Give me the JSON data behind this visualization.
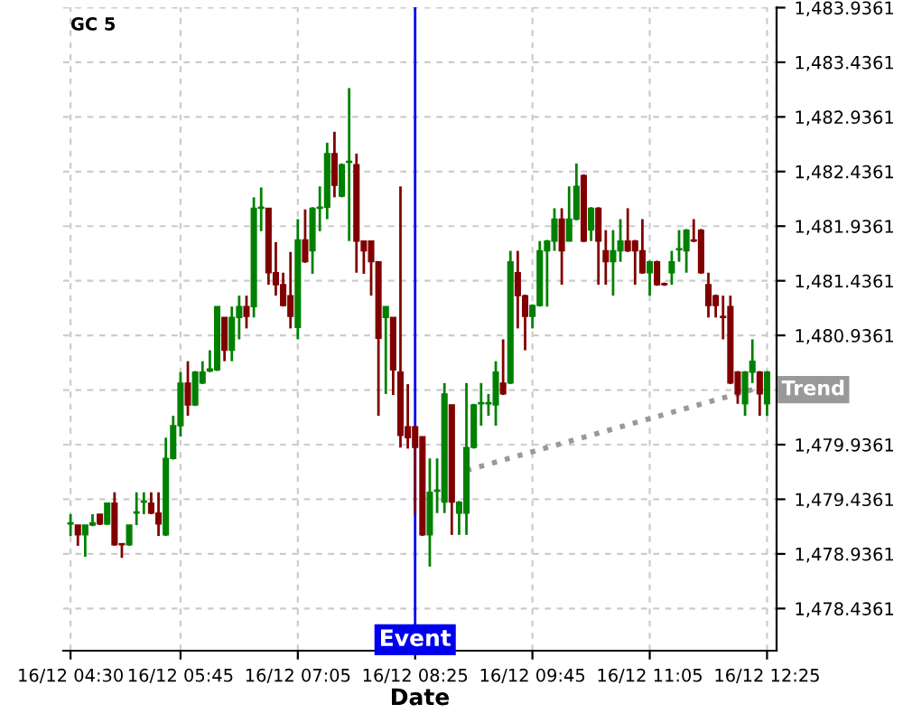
{
  "chart_data": {
    "type": "candlestick",
    "title": "GC 5",
    "xlabel": "Date",
    "categories": [
      "16/12 04:30",
      null,
      null,
      null,
      null,
      null,
      null,
      null,
      null,
      null,
      null,
      null,
      null,
      null,
      null,
      "16/12 05:45",
      null,
      null,
      null,
      null,
      null,
      null,
      null,
      null,
      null,
      null,
      null,
      null,
      null,
      null,
      null,
      "16/12 07:05",
      null,
      null,
      null,
      null,
      null,
      null,
      null,
      null,
      null,
      null,
      null,
      null,
      null,
      null,
      null,
      "16/12 08:25",
      null,
      null,
      null,
      null,
      null,
      null,
      null,
      null,
      null,
      null,
      null,
      null,
      null,
      null,
      null,
      "16/12 09:45",
      null,
      null,
      null,
      null,
      null,
      null,
      null,
      null,
      null,
      null,
      null,
      null,
      null,
      null,
      null,
      "16/12 11:05",
      null,
      null,
      null,
      null,
      null,
      null,
      null,
      null,
      null,
      null,
      null,
      null,
      null,
      null,
      null,
      "16/12 12:25"
    ],
    "ylim": [
      1478.05,
      1483.94
    ],
    "yticks": [
      {
        "value": 1478.4361,
        "label": "1,478.4361"
      },
      {
        "value": 1478.9361,
        "label": "1,478.9361"
      },
      {
        "value": 1479.4361,
        "label": "1,479.4361"
      },
      {
        "value": 1479.9361,
        "label": "1,479.9361"
      },
      {
        "value": 1480.4361,
        "label": null
      },
      {
        "value": 1480.9361,
        "label": "1,480.9361"
      },
      {
        "value": 1481.4361,
        "label": "1,481.4361"
      },
      {
        "value": 1481.9361,
        "label": "1,481.9361"
      },
      {
        "value": 1482.4361,
        "label": "1,482.4361"
      },
      {
        "value": 1482.9361,
        "label": "1,482.9361"
      },
      {
        "value": 1483.4361,
        "label": "1,483.4361"
      },
      {
        "value": 1483.9361,
        "label": "1,483.9361"
      }
    ],
    "grid": true,
    "legend": false,
    "ref_lines": [
      {
        "axis": "x",
        "value": "16/12 08:25",
        "label": "Event",
        "color": "#0000ee"
      }
    ],
    "colors": [
      "#008000",
      "#800000",
      "#008000",
      "#008000",
      "#800000",
      "#008000",
      "#800000",
      "#800000",
      "#008000",
      "#008000",
      "#008000",
      "#800000",
      "#800000",
      "#008000",
      "#008000",
      "#008000",
      "#800000",
      "#008000",
      "#008000",
      "#008000",
      "#008000",
      "#800000",
      "#008000",
      "#008000",
      "#800000",
      "#008000",
      "#008000",
      "#800000",
      "#800000",
      "#800000",
      "#800000",
      "#008000",
      "#800000",
      "#008000",
      "#008000",
      "#008000",
      "#800000",
      "#008000",
      "#008000",
      "#800000",
      "#800000",
      "#800000",
      "#800000",
      "#008000",
      "#800000",
      "#800000",
      "#800000",
      "#800000",
      "#800000",
      "#008000",
      "#008000",
      "#008000",
      "#800000",
      "#008000",
      "#008000",
      "#008000",
      "#008000",
      "#008000",
      "#008000",
      "#800000",
      "#008000",
      "#800000",
      "#800000",
      "#008000",
      "#008000",
      "#008000",
      "#008000",
      "#800000",
      "#008000",
      "#008000",
      "#800000",
      "#008000",
      "#800000",
      "#800000",
      "#008000",
      "#008000",
      "#800000",
      "#800000",
      "#800000",
      "#008000",
      "#800000",
      "#800000",
      "#008000",
      "#008000",
      "#008000",
      "#800000",
      "#800000",
      "#800000",
      "#800000",
      "#800000",
      "#800000",
      "#800000",
      "#008000",
      "#008000",
      "#800000",
      "#008000"
    ],
    "ohlc": [
      [
        1479.21,
        1479.3,
        1479.1,
        1479.22
      ],
      [
        1479.2,
        1479.2,
        1479.01,
        1479.11
      ],
      [
        1479.11,
        1479.2,
        1478.91,
        1479.2
      ],
      [
        1479.2,
        1479.3,
        1479.19,
        1479.22
      ],
      [
        1479.3,
        1479.3,
        1479.2,
        1479.21
      ],
      [
        1479.21,
        1479.4,
        1479.2,
        1479.4
      ],
      [
        1479.4,
        1479.5,
        1479.01,
        1479.02
      ],
      [
        1479.03,
        1479.03,
        1478.9,
        1479.02
      ],
      [
        1479.02,
        1479.2,
        1479.01,
        1479.2
      ],
      [
        1479.31,
        1479.5,
        1479.2,
        1479.32
      ],
      [
        1479.41,
        1479.5,
        1479.3,
        1479.42
      ],
      [
        1479.4,
        1479.5,
        1479.3,
        1479.31
      ],
      [
        1479.31,
        1479.5,
        1479.1,
        1479.21
      ],
      [
        1479.11,
        1480.0,
        1479.1,
        1479.81
      ],
      [
        1479.81,
        1480.2,
        1479.8,
        1480.11
      ],
      [
        1480.11,
        1480.6,
        1480.01,
        1480.5
      ],
      [
        1480.5,
        1480.7,
        1480.2,
        1480.3
      ],
      [
        1480.3,
        1480.61,
        1480.29,
        1480.6
      ],
      [
        1480.5,
        1480.7,
        1480.49,
        1480.6
      ],
      [
        1480.61,
        1480.8,
        1480.6,
        1480.63
      ],
      [
        1480.62,
        1481.2,
        1480.61,
        1481.2
      ],
      [
        1481.1,
        1481.1,
        1480.7,
        1480.8
      ],
      [
        1480.8,
        1481.2,
        1480.7,
        1481.1
      ],
      [
        1481.1,
        1481.3,
        1480.9,
        1481.2
      ],
      [
        1481.2,
        1481.3,
        1481.0,
        1481.11
      ],
      [
        1481.2,
        1482.2,
        1481.1,
        1482.1
      ],
      [
        1482.1,
        1482.29,
        1481.89,
        1482.11
      ],
      [
        1482.1,
        1482.1,
        1481.4,
        1481.51
      ],
      [
        1481.51,
        1481.79,
        1481.3,
        1481.4
      ],
      [
        1481.4,
        1481.51,
        1481.2,
        1481.21
      ],
      [
        1481.3,
        1481.7,
        1481.0,
        1481.11
      ],
      [
        1481.01,
        1482.0,
        1480.9,
        1481.81
      ],
      [
        1481.81,
        1482.09,
        1481.6,
        1481.61
      ],
      [
        1481.71,
        1482.11,
        1481.5,
        1482.1
      ],
      [
        1482.1,
        1482.3,
        1481.89,
        1482.11
      ],
      [
        1482.11,
        1482.7,
        1482.0,
        1482.6
      ],
      [
        1482.6,
        1482.8,
        1482.2,
        1482.31
      ],
      [
        1482.21,
        1482.51,
        1482.2,
        1482.5
      ],
      [
        1482.52,
        1483.2,
        1481.8,
        1482.53
      ],
      [
        1482.5,
        1482.6,
        1481.51,
        1481.8
      ],
      [
        1481.8,
        1481.8,
        1481.5,
        1481.71
      ],
      [
        1481.8,
        1481.8,
        1481.3,
        1481.61
      ],
      [
        1481.61,
        1481.61,
        1480.2,
        1480.91
      ],
      [
        1481.1,
        1481.2,
        1480.4,
        1481.2
      ],
      [
        1481.1,
        1481.1,
        1480.39,
        1480.62
      ],
      [
        1480.6,
        1482.3,
        1479.91,
        1480.02
      ],
      [
        1480.1,
        1480.49,
        1479.9,
        1480.0
      ],
      [
        1480.1,
        1480.11,
        1479.3,
        1479.91
      ],
      [
        1480.01,
        1480.01,
        1479.1,
        1479.11
      ],
      [
        1479.11,
        1479.81,
        1478.82,
        1479.5
      ],
      [
        1479.51,
        1479.81,
        1479.31,
        1479.52
      ],
      [
        1479.41,
        1480.5,
        1479.31,
        1480.4
      ],
      [
        1480.3,
        1480.3,
        1479.11,
        1479.41
      ],
      [
        1479.31,
        1479.42,
        1479.11,
        1479.41
      ],
      [
        1479.31,
        1480.5,
        1479.11,
        1479.91
      ],
      [
        1479.91,
        1480.31,
        1479.9,
        1480.3
      ],
      [
        1480.31,
        1480.5,
        1480.11,
        1480.32
      ],
      [
        1480.31,
        1480.4,
        1480.2,
        1480.32
      ],
      [
        1480.3,
        1480.7,
        1480.11,
        1480.6
      ],
      [
        1480.5,
        1480.9,
        1480.39,
        1480.4
      ],
      [
        1480.5,
        1481.71,
        1480.49,
        1481.61
      ],
      [
        1481.51,
        1481.71,
        1481.0,
        1481.3
      ],
      [
        1481.3,
        1481.31,
        1480.8,
        1481.11
      ],
      [
        1481.11,
        1481.22,
        1481.0,
        1481.21
      ],
      [
        1481.21,
        1481.8,
        1481.2,
        1481.71
      ],
      [
        1481.71,
        1481.81,
        1481.2,
        1481.8
      ],
      [
        1481.8,
        1482.1,
        1481.71,
        1482.0
      ],
      [
        1482.0,
        1482.1,
        1481.4,
        1481.71
      ],
      [
        1481.8,
        1482.3,
        1481.8,
        1482.0
      ],
      [
        1482.0,
        1482.51,
        1481.99,
        1482.3
      ],
      [
        1482.4,
        1482.41,
        1481.79,
        1481.8
      ],
      [
        1481.9,
        1482.11,
        1481.8,
        1482.1
      ],
      [
        1482.1,
        1482.11,
        1481.4,
        1481.8
      ],
      [
        1481.71,
        1481.9,
        1481.4,
        1481.61
      ],
      [
        1481.61,
        1481.9,
        1481.3,
        1481.71
      ],
      [
        1481.71,
        1482.0,
        1481.61,
        1481.8
      ],
      [
        1481.8,
        1482.1,
        1481.7,
        1481.71
      ],
      [
        1481.8,
        1481.81,
        1481.4,
        1481.71
      ],
      [
        1481.71,
        1482.0,
        1481.5,
        1481.51
      ],
      [
        1481.51,
        1481.62,
        1481.3,
        1481.61
      ],
      [
        1481.61,
        1481.62,
        1481.39,
        1481.4
      ],
      [
        1481.41,
        1481.42,
        1481.39,
        1481.4
      ],
      [
        1481.51,
        1481.71,
        1481.4,
        1481.61
      ],
      [
        1481.72,
        1481.9,
        1481.61,
        1481.73
      ],
      [
        1481.71,
        1481.91,
        1481.51,
        1481.9
      ],
      [
        1481.81,
        1482.0,
        1481.79,
        1481.8
      ],
      [
        1481.9,
        1481.91,
        1481.5,
        1481.51
      ],
      [
        1481.4,
        1481.51,
        1481.1,
        1481.21
      ],
      [
        1481.3,
        1481.31,
        1481.1,
        1481.21
      ],
      [
        1481.11,
        1481.3,
        1480.9,
        1481.1
      ],
      [
        1481.2,
        1481.3,
        1480.49,
        1480.5
      ],
      [
        1480.6,
        1480.61,
        1480.31,
        1480.4
      ],
      [
        1480.31,
        1480.61,
        1480.2,
        1480.6
      ],
      [
        1480.6,
        1480.9,
        1480.5,
        1480.7
      ],
      [
        1480.6,
        1480.61,
        1480.2,
        1480.4
      ],
      [
        1480.31,
        1480.61,
        1480.2,
        1480.6
      ]
    ],
    "series": [
      {
        "type": "line",
        "name": "Trend",
        "color": "#999999",
        "line_style": "dotted",
        "values": [
          null,
          null,
          null,
          null,
          null,
          null,
          null,
          null,
          null,
          null,
          null,
          null,
          null,
          null,
          null,
          null,
          null,
          null,
          null,
          null,
          null,
          null,
          null,
          null,
          null,
          null,
          null,
          null,
          null,
          null,
          null,
          null,
          null,
          null,
          null,
          null,
          null,
          null,
          null,
          null,
          null,
          null,
          null,
          null,
          null,
          null,
          null,
          null,
          null,
          null,
          null,
          null,
          null,
          null,
          1479.7,
          null,
          null,
          null,
          null,
          null,
          null,
          null,
          null,
          null,
          null,
          null,
          null,
          null,
          null,
          null,
          null,
          null,
          null,
          null,
          null,
          null,
          null,
          null,
          null,
          null,
          null,
          null,
          null,
          null,
          null,
          null,
          null,
          null,
          null,
          null,
          null,
          null,
          null,
          1480.44,
          null,
          null
        ]
      }
    ]
  }
}
